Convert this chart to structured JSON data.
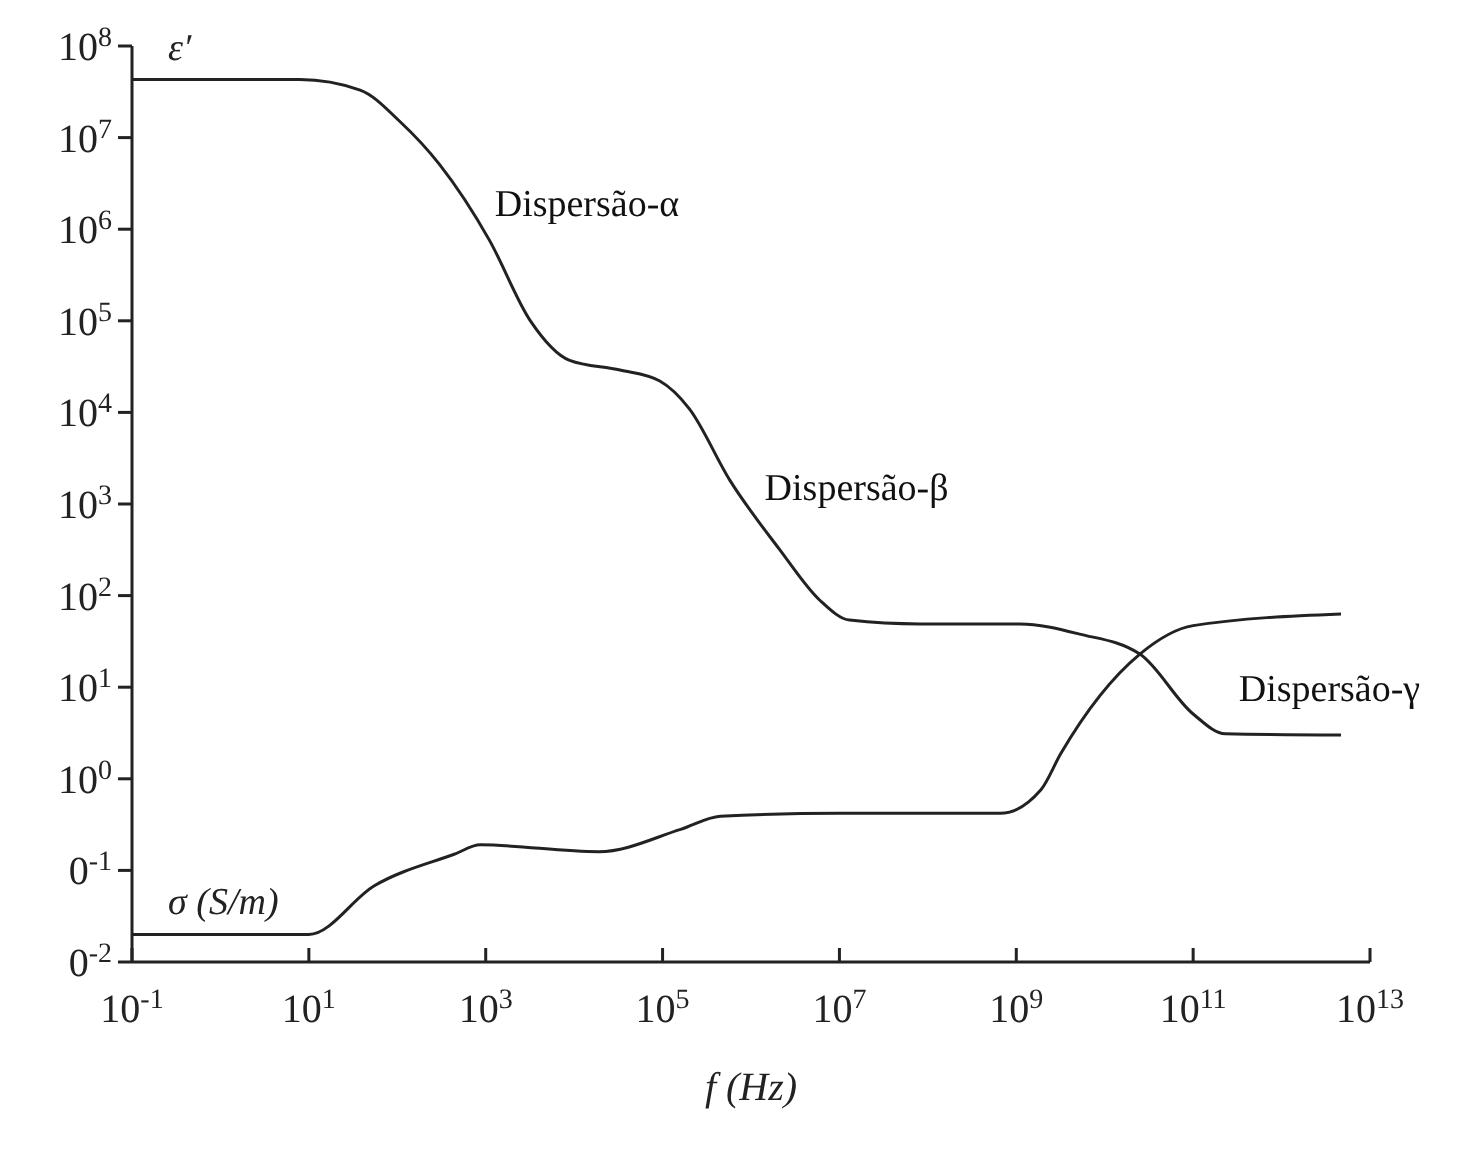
{
  "chart_data": {
    "type": "line",
    "xlabel": "f (Hz)",
    "log": "xy",
    "grid": false,
    "marker": "none",
    "line_style": "solid",
    "xlim": [
      0.1,
      10000000000000.0
    ],
    "ylim": [
      0.01,
      100000000.0
    ],
    "xticks": [
      {
        "value": 0.1,
        "label": "10$^{-1}$"
      },
      {
        "value": 10,
        "label": "10$^{1}$"
      },
      {
        "value": 1000,
        "label": "10$^{3}$"
      },
      {
        "value": 100000,
        "label": "10$^{5}$"
      },
      {
        "value": 10000000.0,
        "label": "10$^{7}$"
      },
      {
        "value": 1000000000.0,
        "label": "10$^{9}$"
      },
      {
        "value": 100000000000.0,
        "label": "10$^{11}$"
      },
      {
        "value": 10000000000000.0,
        "label": "10$^{13}$"
      }
    ],
    "yticks": [
      {
        "value": 0.01,
        "label": "0$^{-2}$"
      },
      {
        "value": 0.1,
        "label": "0$^{-1}$"
      },
      {
        "value": 1,
        "label": "10$^{0}$"
      },
      {
        "value": 10,
        "label": "10$^{1}$"
      },
      {
        "value": 100,
        "label": "10$^{2}$"
      },
      {
        "value": 1000,
        "label": "10$^{3}$"
      },
      {
        "value": 10000,
        "label": "10$^{4}$"
      },
      {
        "value": 100000,
        "label": "10$^{5}$"
      },
      {
        "value": 1000000,
        "label": "10$^{6}$"
      },
      {
        "value": 10000000.0,
        "label": "10$^{7}$"
      },
      {
        "value": 100000000.0,
        "label": "10$^{8}$"
      }
    ],
    "series": [
      {
        "name": "ε′",
        "color": "#222222",
        "x": [
          0.1,
          7.9,
          38,
          107,
          300,
          1100,
          3200,
          8900,
          33000,
          93000,
          200000,
          580000,
          2100000,
          6000000,
          13000000,
          81000000,
          1100000000,
          5200000000,
          25000000000,
          100000000000,
          230000000000,
          4700000000000
        ],
        "values": [
          43000000,
          43000000,
          33000000,
          15000000,
          5100000,
          760000,
          100000,
          37000,
          29000,
          22000,
          11000,
          1800,
          320,
          89,
          54,
          49,
          49,
          38,
          23,
          5.1,
          3.1,
          3.0
        ]
      },
      {
        "name": "σ (S/m)",
        "color": "#222222",
        "x": [
          0.1,
          10,
          55,
          440,
          870,
          19000,
          160000,
          450000,
          10000000,
          660000000,
          1900000000,
          3200000000,
          25000000000,
          100000000000,
          4700000000000
        ],
        "values": [
          0.02,
          0.02,
          0.068,
          0.15,
          0.19,
          0.16,
          0.28,
          0.39,
          0.42,
          0.42,
          0.76,
          1.9,
          23,
          47,
          63
        ]
      }
    ],
    "annotations": [
      "Dispersão-α",
      "Dispersão-β",
      "Dispersão-γ"
    ]
  }
}
